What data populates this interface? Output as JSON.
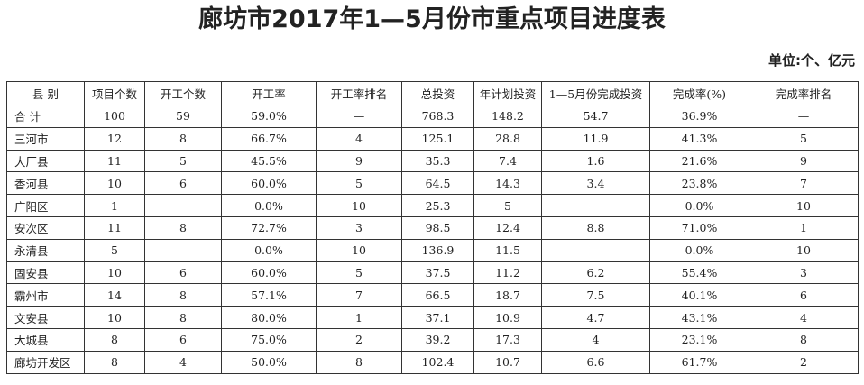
{
  "header": {
    "title": "廊坊市2017年1—5月份市重点项目进度表",
    "unit": "单位:个、亿元"
  },
  "table": {
    "columns": [
      "县 别",
      "项目个数",
      "开工个数",
      "开工率",
      "开工率排名",
      "总投资",
      "年计划投资",
      "1—5月份完成投资",
      "完成率(%)",
      "完成率排名"
    ],
    "rows": [
      [
        "合 计",
        "100",
        "59",
        "59.0%",
        "—",
        "768.3",
        "148.2",
        "54.7",
        "36.9%",
        "—"
      ],
      [
        "三河市",
        "12",
        "8",
        "66.7%",
        "4",
        "125.1",
        "28.8",
        "11.9",
        "41.3%",
        "5"
      ],
      [
        "大厂县",
        "11",
        "5",
        "45.5%",
        "9",
        "35.3",
        "7.4",
        "1.6",
        "21.6%",
        "9"
      ],
      [
        "香河县",
        "10",
        "6",
        "60.0%",
        "5",
        "64.5",
        "14.3",
        "3.4",
        "23.8%",
        "7"
      ],
      [
        "广阳区",
        "1",
        null,
        "0.0%",
        "10",
        "25.3",
        "5",
        null,
        "0.0%",
        "10"
      ],
      [
        "安次区",
        "11",
        "8",
        "72.7%",
        "3",
        "98.5",
        "12.4",
        "8.8",
        "71.0%",
        "1"
      ],
      [
        "永清县",
        "5",
        null,
        "0.0%",
        "10",
        "136.9",
        "11.5",
        null,
        "0.0%",
        "10"
      ],
      [
        "固安县",
        "10",
        "6",
        "60.0%",
        "5",
        "37.5",
        "11.2",
        "6.2",
        "55.4%",
        "3"
      ],
      [
        "霸州市",
        "14",
        "8",
        "57.1%",
        "7",
        "66.5",
        "18.7",
        "7.5",
        "40.1%",
        "6"
      ],
      [
        "文安县",
        "10",
        "8",
        "80.0%",
        "1",
        "37.1",
        "10.9",
        "4.7",
        "43.1%",
        "4"
      ],
      [
        "大城县",
        "8",
        "6",
        "75.0%",
        "2",
        "39.2",
        "17.3",
        "4",
        "23.1%",
        "8"
      ],
      [
        "廊坊开发区",
        "8",
        "4",
        "50.0%",
        "8",
        "102.4",
        "10.7",
        "6.6",
        "61.7%",
        "2"
      ]
    ]
  }
}
